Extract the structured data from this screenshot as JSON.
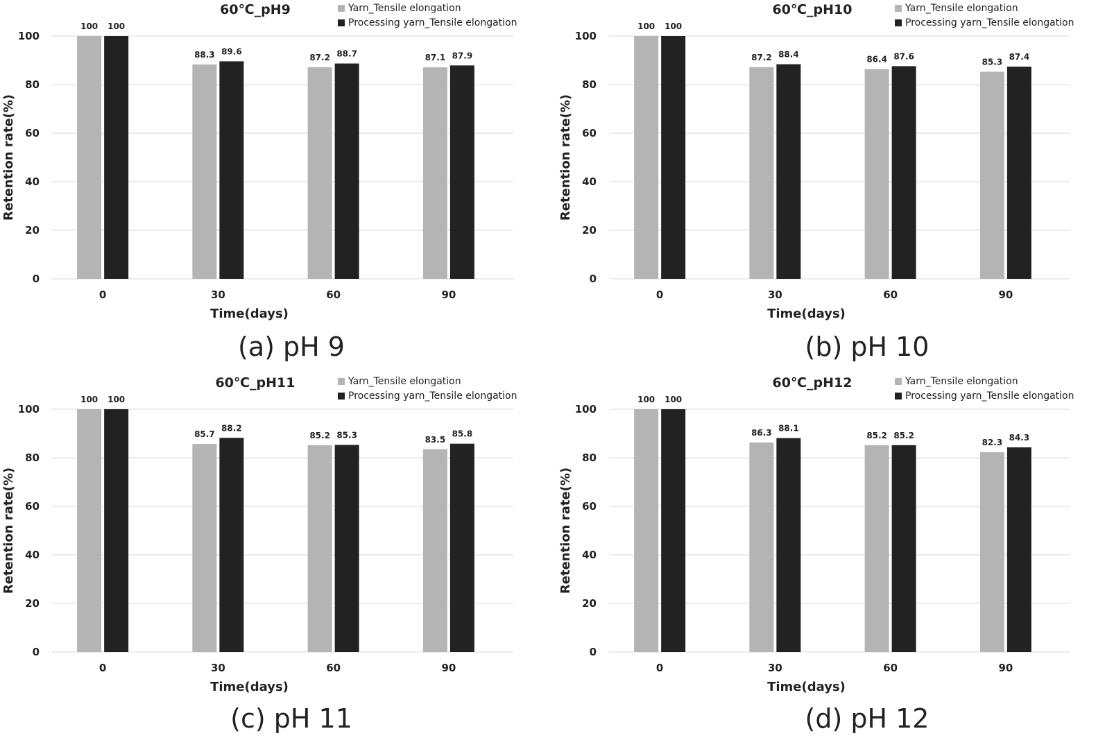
{
  "colors": {
    "yarn": "#b4b4b4",
    "processing": "#222222",
    "grid": "#d9d9d9"
  },
  "chart_data": [
    {
      "type": "bar",
      "title": "60℃_pH9",
      "caption": "(a) pH 9",
      "xlabel": "Time(days)",
      "ylabel": "Retention rate(%)",
      "ylim": [
        0,
        100
      ],
      "yticks": [
        0,
        20,
        40,
        60,
        80,
        100
      ],
      "categories": [
        "0",
        "30",
        "60",
        "90"
      ],
      "legend_position": "top-right",
      "series": [
        {
          "name": "Yarn_Tensile elongation",
          "values": [
            100,
            88.3,
            87.2,
            87.1
          ]
        },
        {
          "name": "Processing yarn_Tensile elongation",
          "values": [
            100,
            89.6,
            88.7,
            87.9
          ]
        }
      ]
    },
    {
      "type": "bar",
      "title": "60℃_pH10",
      "caption": "(b) pH 10",
      "xlabel": "Time(days)",
      "ylabel": "Retention rate(%)",
      "ylim": [
        0,
        100
      ],
      "yticks": [
        0,
        20,
        40,
        60,
        80,
        100
      ],
      "categories": [
        "0",
        "30",
        "60",
        "90"
      ],
      "legend_position": "top-right",
      "series": [
        {
          "name": "Yarn_Tensile elongation",
          "values": [
            100,
            87.2,
            86.4,
            85.3
          ]
        },
        {
          "name": "Processing yarn_Tensile elongation",
          "values": [
            100,
            88.4,
            87.6,
            87.4
          ]
        }
      ]
    },
    {
      "type": "bar",
      "title": "60℃_pH11",
      "caption": "(c) pH 11",
      "xlabel": "Time(days)",
      "ylabel": "Retention rate(%)",
      "ylim": [
        0,
        100
      ],
      "yticks": [
        0,
        20,
        40,
        60,
        80,
        100
      ],
      "categories": [
        "0",
        "30",
        "60",
        "90"
      ],
      "legend_position": "top-right",
      "series": [
        {
          "name": "Yarn_Tensile elongation",
          "values": [
            100,
            85.7,
            85.2,
            83.5
          ]
        },
        {
          "name": "Processing yarn_Tensile elongation",
          "values": [
            100,
            88.2,
            85.3,
            85.8
          ]
        }
      ]
    },
    {
      "type": "bar",
      "title": "60℃_pH12",
      "caption": "(d) pH 12",
      "xlabel": "Time(days)",
      "ylabel": "Retention rate(%)",
      "ylim": [
        0,
        100
      ],
      "yticks": [
        0,
        20,
        40,
        60,
        80,
        100
      ],
      "categories": [
        "0",
        "30",
        "60",
        "90"
      ],
      "legend_position": "top-right",
      "series": [
        {
          "name": "Yarn_Tensile elongation",
          "values": [
            100,
            86.3,
            85.2,
            82.3
          ]
        },
        {
          "name": "Processing yarn_Tensile elongation",
          "values": [
            100,
            88.1,
            85.2,
            84.3
          ]
        }
      ]
    }
  ]
}
